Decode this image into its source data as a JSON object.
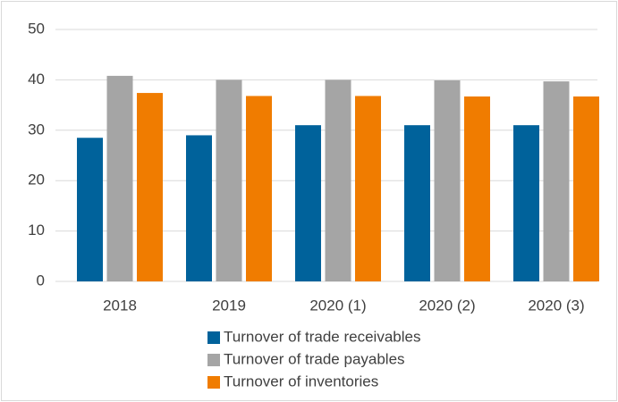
{
  "chart_data": {
    "type": "bar",
    "categories": [
      "2018",
      "2019",
      "2020 (1)",
      "2020 (2)",
      "2020 (3)"
    ],
    "series": [
      {
        "name": "Turnover of trade receivables",
        "color": "#00629b",
        "values": [
          28.5,
          29,
          31,
          31,
          31
        ]
      },
      {
        "name": "Turnover of trade payables",
        "color": "#a5a5a5",
        "values": [
          40.8,
          40,
          40,
          39.9,
          39.7
        ]
      },
      {
        "name": "Turnover of inventories",
        "color": "#f07c00",
        "values": [
          37.4,
          36.8,
          36.8,
          36.7,
          36.7
        ]
      }
    ],
    "ylim": [
      0,
      50
    ],
    "yticks": [
      0,
      10,
      20,
      30,
      40,
      50
    ],
    "grid": true,
    "legend": "bottom"
  }
}
